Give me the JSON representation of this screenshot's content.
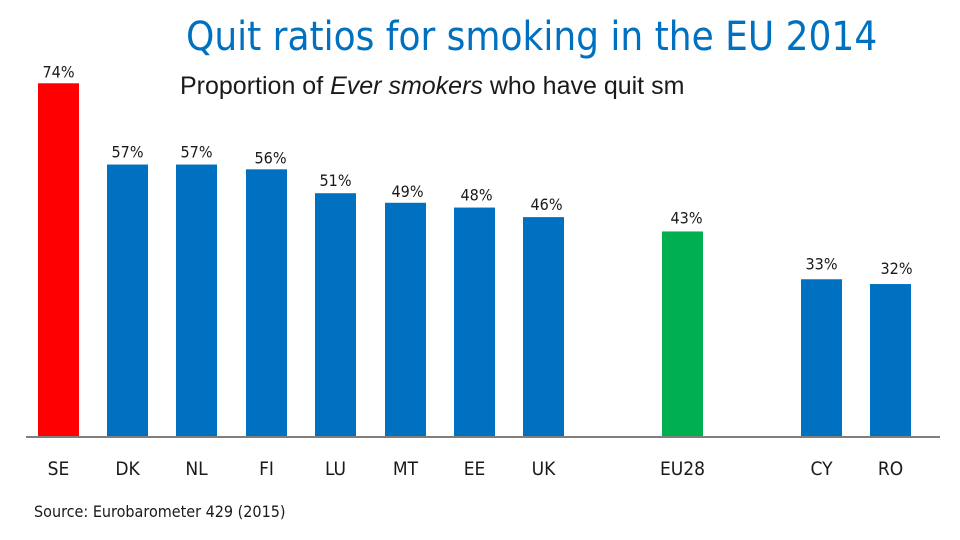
{
  "chart_data": {
    "type": "bar",
    "title": "Quit ratios for smoking in the EU 2014",
    "subtitle": {
      "before": "Proportion of ",
      "emphasis": "Ever smokers",
      "after": " who have quit sm"
    },
    "source": "Source: Eurobarometer 429 (2015)",
    "ylim": [
      0,
      80
    ],
    "grid": false,
    "categories": [
      "SE",
      "DK",
      "NL",
      "FI",
      "LU",
      "MT",
      "EE",
      "UK",
      "EU28",
      "CY",
      "RO"
    ],
    "values": [
      74,
      57,
      57,
      56,
      51,
      49,
      48,
      46,
      43,
      33,
      32
    ],
    "value_labels": [
      "74%",
      "57%",
      "57%",
      "56%",
      "51%",
      "49%",
      "48%",
      "46%",
      "43%",
      "33%",
      "32%"
    ],
    "colors": [
      "#FF0000",
      "#0070C0",
      "#0070C0",
      "#0070C0",
      "#0070C0",
      "#0070C0",
      "#0070C0",
      "#0070C0",
      "#00B050",
      "#0070C0",
      "#0070C0"
    ],
    "axis_color": "#7f7f7f"
  }
}
